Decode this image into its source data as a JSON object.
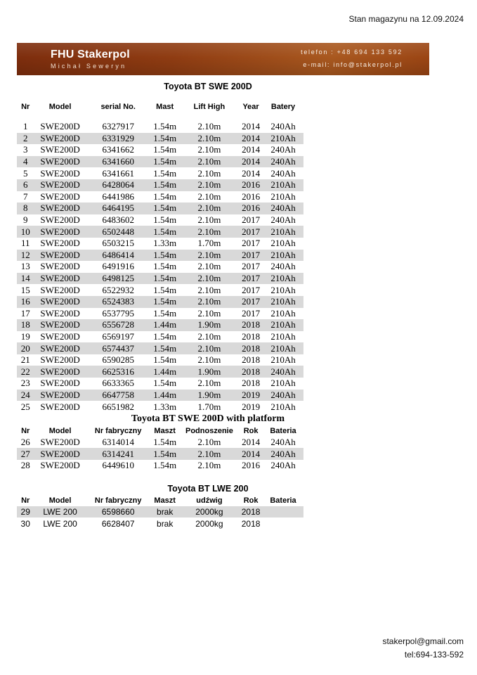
{
  "report_date": "Stan magazynu na 12.09.2024",
  "header": {
    "company": "FHU Stakerpol",
    "owner": "Michał Seweryn",
    "phone": "telefon : +48 694 133 592",
    "email": "e-mail: info@stakerpol.pl",
    "bar_color_dark": "#7d2d0d",
    "bar_color_light": "#a9581f",
    "text_color": "#ffffff"
  },
  "colors": {
    "row_stripe": "#d9d9d9",
    "text": "#000000",
    "background": "#ffffff"
  },
  "tables": [
    {
      "title": "Toyota BT SWE 200D",
      "title_style": "sans",
      "body_style": "serif",
      "stripe": "second",
      "header_gap": true,
      "columns": [
        "Nr",
        "Model",
        "serial No.",
        "Mast",
        "Lift High",
        "Year",
        "Batery"
      ],
      "rows": [
        [
          "1",
          "SWE200D",
          "6327917",
          "1.54m",
          "2.10m",
          "2014",
          "240Ah"
        ],
        [
          "2",
          "SWE200D",
          "6331929",
          "1.54m",
          "2.10m",
          "2014",
          "210Ah"
        ],
        [
          "3",
          "SWE200D",
          "6341662",
          "1.54m",
          "2.10m",
          "2014",
          "240Ah"
        ],
        [
          "4",
          "SWE200D",
          "6341660",
          "1.54m",
          "2.10m",
          "2014",
          "240Ah"
        ],
        [
          "5",
          "SWE200D",
          "6341661",
          "1.54m",
          "2.10m",
          "2014",
          "240Ah"
        ],
        [
          "6",
          "SWE200D",
          "6428064",
          "1.54m",
          "2.10m",
          "2016",
          "210Ah"
        ],
        [
          "7",
          "SWE200D",
          "6441986",
          "1.54m",
          "2.10m",
          "2016",
          "210Ah"
        ],
        [
          "8",
          "SWE200D",
          "6464195",
          "1.54m",
          "2.10m",
          "2016",
          "240Ah"
        ],
        [
          "9",
          "SWE200D",
          "6483602",
          "1.54m",
          "2.10m",
          "2017",
          "240Ah"
        ],
        [
          "10",
          "SWE200D",
          "6502448",
          "1.54m",
          "2.10m",
          "2017",
          "210Ah"
        ],
        [
          "11",
          "SWE200D",
          "6503215",
          "1.33m",
          "1.70m",
          "2017",
          "210Ah"
        ],
        [
          "12",
          "SWE200D",
          "6486414",
          "1.54m",
          "2.10m",
          "2017",
          "210Ah"
        ],
        [
          "13",
          "SWE200D",
          "6491916",
          "1.54m",
          "2.10m",
          "2017",
          "240Ah"
        ],
        [
          "14",
          "SWE200D",
          "6498125",
          "1.54m",
          "2.10m",
          "2017",
          "210Ah"
        ],
        [
          "15",
          "SWE200D",
          "6522932",
          "1.54m",
          "2.10m",
          "2017",
          "210Ah"
        ],
        [
          "16",
          "SWE200D",
          "6524383",
          "1.54m",
          "2.10m",
          "2017",
          "210Ah"
        ],
        [
          "17",
          "SWE200D",
          "6537795",
          "1.54m",
          "2.10m",
          "2017",
          "210Ah"
        ],
        [
          "18",
          "SWE200D",
          "6556728",
          "1.44m",
          "1.90m",
          "2018",
          "210Ah"
        ],
        [
          "19",
          "SWE200D",
          "6569197",
          "1.54m",
          "2.10m",
          "2018",
          "210Ah"
        ],
        [
          "20",
          "SWE200D",
          "6574437",
          "1.54m",
          "2.10m",
          "2018",
          "210Ah"
        ],
        [
          "21",
          "SWE200D",
          "6590285",
          "1.54m",
          "2.10m",
          "2018",
          "210Ah"
        ],
        [
          "22",
          "SWE200D",
          "6625316",
          "1.44m",
          "1.90m",
          "2018",
          "240Ah"
        ],
        [
          "23",
          "SWE200D",
          "6633365",
          "1.54m",
          "2.10m",
          "2018",
          "210Ah"
        ],
        [
          "24",
          "SWE200D",
          "6647758",
          "1.44m",
          "1.90m",
          "2019",
          "240Ah"
        ],
        [
          "25",
          "SWE200D",
          "6651982",
          "1.33m",
          "1.70m",
          "2019",
          "210Ah"
        ]
      ]
    },
    {
      "title": "Toyota BT SWE 200D with platform",
      "title_style": "serif",
      "body_style": "serif",
      "stripe": "second",
      "header_gap": false,
      "columns": [
        "Nr",
        "Model",
        "Nr fabryczny",
        "Maszt",
        "Podnoszenie",
        "Rok",
        "Bateria"
      ],
      "rows": [
        [
          "26",
          "SWE200D",
          "6314014",
          "1.54m",
          "2.10m",
          "2014",
          "240Ah"
        ],
        [
          "27",
          "SWE200D",
          "6314241",
          "1.54m",
          "2.10m",
          "2014",
          "240Ah"
        ],
        [
          "28",
          "SWE200D",
          "6449610",
          "1.54m",
          "2.10m",
          "2016",
          "240Ah"
        ]
      ]
    },
    {
      "title": "Toyota BT LWE 200",
      "title_style": "sans",
      "body_style": "sans",
      "stripe": "first",
      "header_gap": false,
      "columns": [
        "Nr",
        "Model",
        "Nr fabryczny",
        "Maszt",
        "udźwig",
        "Rok",
        "Bateria"
      ],
      "rows": [
        [
          "29",
          "LWE 200",
          "6598660",
          "brak",
          "2000kg",
          "2018",
          ""
        ],
        [
          "30",
          "LWE 200",
          "6628407",
          "brak",
          "2000kg",
          "2018",
          ""
        ]
      ]
    }
  ],
  "footer": {
    "email": "stakerpol@gmail.com",
    "tel": "tel:694-133-592"
  }
}
